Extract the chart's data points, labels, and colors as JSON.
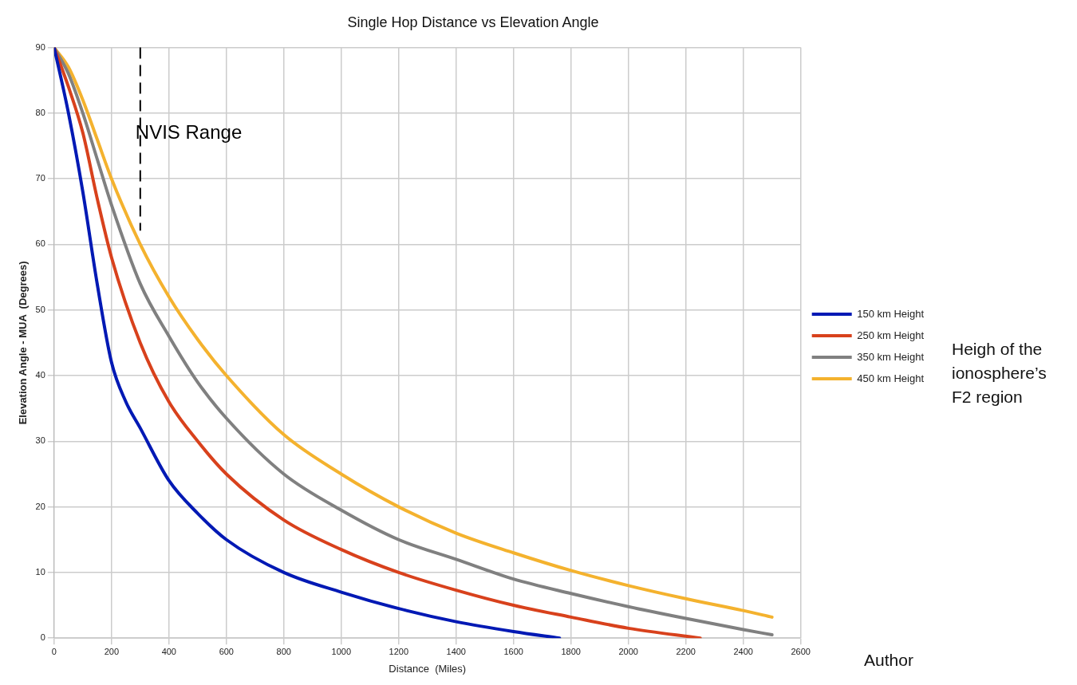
{
  "chart_data": {
    "type": "line",
    "title": "Single Hop Distance vs Elevation Angle",
    "xlabel": "Distance  (Miles)",
    "ylabel": "Elevation Angle - MUA  (Degrees)",
    "xlim": [
      0,
      2600
    ],
    "xticks": [
      0,
      200,
      400,
      600,
      800,
      1000,
      1200,
      1400,
      1600,
      1800,
      2000,
      2200,
      2400,
      2600
    ],
    "ylim": [
      0,
      90
    ],
    "yticks": [
      0,
      10,
      20,
      30,
      40,
      50,
      60,
      70,
      80,
      90
    ],
    "grid": true,
    "legend": "right",
    "marker": "none",
    "line_style": "solid",
    "series": [
      {
        "name": "150 km Height",
        "color": "#0019b4",
        "x": [
          0,
          50,
          100,
          150,
          200,
          250,
          300,
          400,
          500,
          600,
          800,
          1000,
          1200,
          1400,
          1600,
          1760
        ],
        "values": [
          90,
          80,
          68,
          54,
          42,
          36,
          32,
          24,
          19,
          15,
          10,
          7,
          4.5,
          2.5,
          1,
          0
        ]
      },
      {
        "name": "250 km Height",
        "color": "#d8411c",
        "x": [
          0,
          50,
          100,
          150,
          200,
          300,
          400,
          500,
          600,
          800,
          1000,
          1200,
          1400,
          1600,
          1800,
          2000,
          2250
        ],
        "values": [
          90,
          84,
          77,
          67,
          58,
          45,
          36,
          30,
          25,
          18,
          13.5,
          10,
          7.3,
          5,
          3.2,
          1.5,
          0
        ]
      },
      {
        "name": "350 km Height",
        "color": "#808080",
        "x": [
          0,
          50,
          100,
          150,
          200,
          300,
          400,
          500,
          600,
          800,
          1000,
          1200,
          1400,
          1600,
          1800,
          2000,
          2200,
          2400,
          2500
        ],
        "values": [
          90,
          86,
          80,
          73,
          66,
          54,
          46,
          39,
          33.5,
          25,
          19.5,
          15,
          12,
          9,
          6.8,
          4.8,
          3,
          1.3,
          0.5
        ]
      },
      {
        "name": "450 km Height",
        "color": "#f4b22e",
        "x": [
          0,
          50,
          100,
          150,
          200,
          300,
          400,
          500,
          600,
          800,
          1000,
          1200,
          1400,
          1600,
          1800,
          2000,
          2200,
          2400,
          2500
        ],
        "values": [
          90,
          87,
          82,
          76,
          70,
          60,
          52,
          45.5,
          40,
          31,
          25,
          20,
          16,
          13,
          10.3,
          8,
          6,
          4.2,
          3.2
        ]
      }
    ],
    "ref_lines": [
      {
        "axis": "x",
        "value": 300,
        "label": "NVIS Range",
        "line_style": "dashed",
        "color": "#000000"
      }
    ],
    "annotations": [
      "Heigh of the ionosphere’s F2 region",
      "Author"
    ]
  }
}
